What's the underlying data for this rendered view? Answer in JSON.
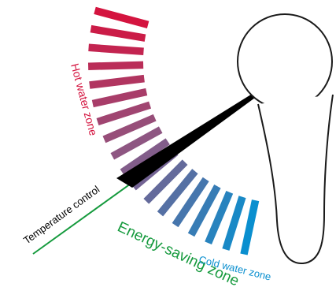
{
  "labels": {
    "hot_zone": "Hot water zone",
    "temperature_control": "Temperature control",
    "energy_saving": "Energy-saving zone",
    "cold_zone": "Cold water zone"
  },
  "colors": {
    "hot": "#d4143f",
    "mid": "#8a5a86",
    "cold": "#0a8fcf",
    "energy_saving_text": "#159a3d",
    "temperature_line": "#000000",
    "tap_outline": "#1a1a1a"
  },
  "zones": {
    "hot_bar_count": 9,
    "cold_bar_count": 9
  }
}
